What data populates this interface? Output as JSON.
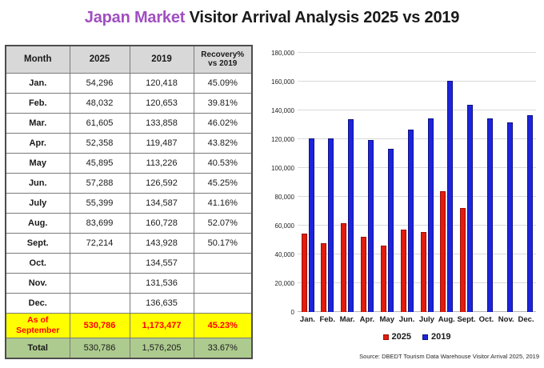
{
  "title": {
    "highlight": "Japan Market",
    "rest": " Visitor Arrival Analysis 2025 vs 2019"
  },
  "table": {
    "headers": [
      "Month",
      "2025",
      "2019",
      "Recovery% vs 2019"
    ],
    "rows": [
      {
        "month": "Jan.",
        "y2025": "54,296",
        "y2019": "120,418",
        "recovery": "45.09%"
      },
      {
        "month": "Feb.",
        "y2025": "48,032",
        "y2019": "120,653",
        "recovery": "39.81%"
      },
      {
        "month": "Mar.",
        "y2025": "61,605",
        "y2019": "133,858",
        "recovery": "46.02%"
      },
      {
        "month": "Apr.",
        "y2025": "52,358",
        "y2019": "119,487",
        "recovery": "43.82%"
      },
      {
        "month": "May",
        "y2025": "45,895",
        "y2019": "113,226",
        "recovery": "40.53%"
      },
      {
        "month": "Jun.",
        "y2025": "57,288",
        "y2019": "126,592",
        "recovery": "45.25%"
      },
      {
        "month": "July",
        "y2025": "55,399",
        "y2019": "134,587",
        "recovery": "41.16%"
      },
      {
        "month": "Aug.",
        "y2025": "83,699",
        "y2019": "160,728",
        "recovery": "52.07%"
      },
      {
        "month": "Sept.",
        "y2025": "72,214",
        "y2019": "143,928",
        "recovery": "50.17%"
      },
      {
        "month": "Oct.",
        "y2025": "",
        "y2019": "134,557",
        "recovery": ""
      },
      {
        "month": "Nov.",
        "y2025": "",
        "y2019": "131,536",
        "recovery": ""
      },
      {
        "month": "Dec.",
        "y2025": "",
        "y2019": "136,635",
        "recovery": ""
      }
    ],
    "summary": [
      {
        "key": "as-of",
        "label": "As of September",
        "y2025": "530,786",
        "y2019": "1,173,477",
        "recovery": "45.23%"
      },
      {
        "key": "total",
        "label": "Total",
        "y2025": "530,786",
        "y2019": "1,576,205",
        "recovery": "33.67%"
      }
    ]
  },
  "chart_data": {
    "type": "bar",
    "title": "",
    "xlabel": "",
    "ylabel": "",
    "categories": [
      "Jan.",
      "Feb.",
      "Mar.",
      "Apr.",
      "May",
      "Jun.",
      "July",
      "Aug.",
      "Sept.",
      "Oct.",
      "Nov.",
      "Dec."
    ],
    "series": [
      {
        "name": "2025",
        "color": "#e41b0d",
        "border_color": "#991106",
        "values": [
          54296,
          48032,
          61605,
          52358,
          45895,
          57288,
          55399,
          83699,
          72214,
          null,
          null,
          null
        ]
      },
      {
        "name": "2019",
        "color": "#1c24dd",
        "border_color": "#10127f",
        "values": [
          120418,
          120653,
          133858,
          119487,
          113226,
          126592,
          134587,
          160728,
          143928,
          134557,
          131536,
          136635
        ]
      }
    ],
    "ylim": [
      0,
      180000
    ],
    "ytick_step": 20000,
    "yticks": [
      "0",
      "20,000",
      "40,000",
      "60,000",
      "80,000",
      "100,000",
      "120,000",
      "140,000",
      "160,000",
      "180,000"
    ],
    "grid": true,
    "legend_position": "bottom"
  },
  "source": "Source: DBEDT Tourism Data Warehouse Visitor Arrival 2025, 2019",
  "colors": {
    "title_accent": "#a04fc0",
    "header_bg": "#d8d8d8",
    "as_of_row_bg": "#ffff00",
    "as_of_row_text": "#ff0000",
    "total_row_bg": "#aecb8f",
    "bar_2025": "#e41b0d",
    "bar_2019": "#1c24dd",
    "gridline": "#d9d9d9"
  }
}
